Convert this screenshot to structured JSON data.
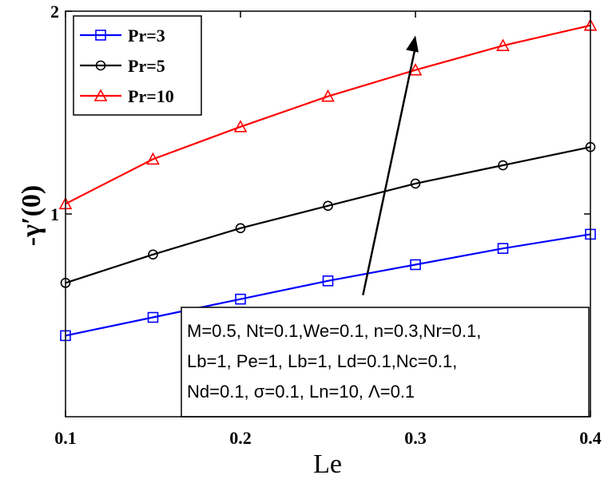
{
  "chart_data": {
    "type": "line",
    "x": [
      0.1,
      0.15,
      0.2,
      0.25,
      0.3,
      0.35,
      0.4
    ],
    "series": [
      {
        "name": "Pr=3",
        "color": "#0000ff",
        "marker": "square",
        "values": [
          0.4,
          0.49,
          0.58,
          0.67,
          0.75,
          0.83,
          0.9
        ]
      },
      {
        "name": "Pr=5",
        "color": "#000000",
        "marker": "circle",
        "values": [
          0.66,
          0.8,
          0.93,
          1.04,
          1.15,
          1.24,
          1.33
        ]
      },
      {
        "name": "Pr=10",
        "color": "#ff0000",
        "marker": "triangle",
        "values": [
          1.05,
          1.27,
          1.43,
          1.58,
          1.71,
          1.83,
          1.93
        ]
      }
    ],
    "xlabel": "Le",
    "ylabel": "-γ′(0)",
    "xlim": [
      0.1,
      0.4
    ],
    "ylim": [
      0,
      2
    ],
    "xticks": [
      "0.1",
      "0.2",
      "0.3",
      "0.4"
    ],
    "yticks": [
      "1",
      "2"
    ],
    "ytick_values": [
      1,
      2
    ],
    "grid": false,
    "legend_position": "top-left",
    "annotation": {
      "lines": [
        "M=0.5, Nt=0.1,We=0.1, n=0.3,Nr=0.1,",
        "Lb=1, Pe=1, Lb=1, Ld=0.1,Nc=0.1,",
        "Nd=0.1, σ=0.1, Ln=10, Λ=0.1"
      ],
      "arrow_from": {
        "x": 0.27,
        "y": 0.6
      },
      "arrow_to": {
        "x": 0.3,
        "y": 1.88
      }
    }
  }
}
